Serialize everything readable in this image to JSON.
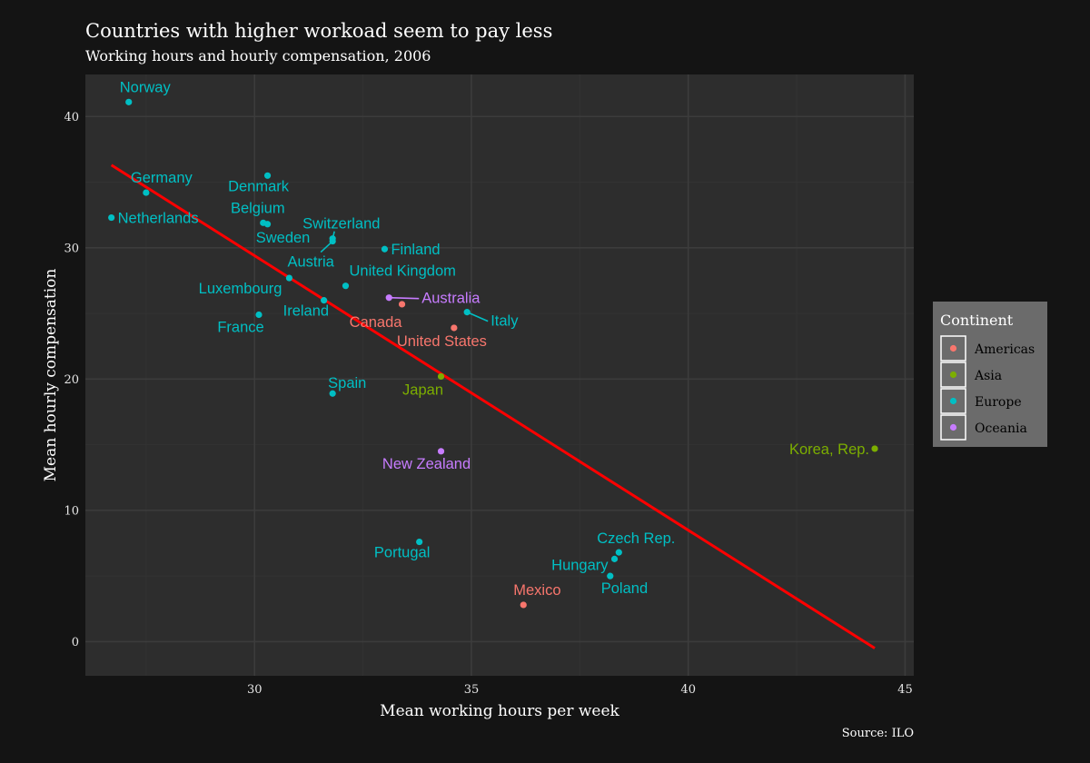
{
  "title": "Countries with higher workoad seem to pay less",
  "subtitle": "Working hours and hourly compensation, 2006",
  "caption": "Source: ILO",
  "colors": {
    "background": "#141414",
    "panel": "#2d2d2d",
    "grid_major": "#3c3c3c",
    "grid_minor": "#333333",
    "text": "#ffffff",
    "tick_text": "#e6e6e6",
    "trend_line": "#ff0000",
    "legend_bg": "#6b6b6b"
  },
  "legend": {
    "title": "Continent",
    "placement": "right",
    "items": [
      {
        "label": "Americas",
        "color": "#F8766D"
      },
      {
        "label": "Asia",
        "color": "#7CAE00"
      },
      {
        "label": "Europe",
        "color": "#00BFC4"
      },
      {
        "label": "Oceania",
        "color": "#C77CFF"
      }
    ]
  },
  "chart_data": {
    "type": "scatter",
    "title": "Countries with higher workoad seem to pay less",
    "subtitle": "Working hours and hourly compensation, 2006",
    "xlabel": "Mean working hours per week",
    "ylabel": "Mean hourly compensation",
    "xlim": [
      26.1,
      45.2
    ],
    "ylim": [
      -2.6,
      43.2
    ],
    "x_ticks": [
      30,
      35,
      40,
      45
    ],
    "y_ticks": [
      0,
      10,
      20,
      30,
      40
    ],
    "grid": true,
    "legend_placement": "right",
    "trend_line": {
      "x1": 26.7,
      "y1": 36.3,
      "x2": 44.3,
      "y2": -0.5
    },
    "series": [
      {
        "name": "Americas",
        "color": "#F8766D",
        "points": [
          {
            "label": "Canada",
            "x": 33.4,
            "y": 25.7
          },
          {
            "label": "United States",
            "x": 34.6,
            "y": 23.9
          },
          {
            "label": "Mexico",
            "x": 36.2,
            "y": 2.8
          }
        ]
      },
      {
        "name": "Asia",
        "color": "#7CAE00",
        "points": [
          {
            "label": "Japan",
            "x": 34.3,
            "y": 20.2
          },
          {
            "label": "Korea, Rep.",
            "x": 44.3,
            "y": 14.7
          }
        ]
      },
      {
        "name": "Europe",
        "color": "#00BFC4",
        "points": [
          {
            "label": "Norway",
            "x": 27.1,
            "y": 41.1
          },
          {
            "label": "Germany",
            "x": 27.5,
            "y": 34.2
          },
          {
            "label": "Netherlands",
            "x": 26.7,
            "y": 32.3
          },
          {
            "label": "Denmark",
            "x": 30.3,
            "y": 35.5
          },
          {
            "label": "Belgium",
            "x": 30.2,
            "y": 31.9
          },
          {
            "label": "Sweden",
            "x": 30.3,
            "y": 31.8
          },
          {
            "label": "Switzerland",
            "x": 31.8,
            "y": 30.7
          },
          {
            "label": "Austria",
            "x": 31.8,
            "y": 30.5
          },
          {
            "label": "Finland",
            "x": 33.0,
            "y": 29.9
          },
          {
            "label": "United Kingdom",
            "x": 32.1,
            "y": 27.1
          },
          {
            "label": "Luxembourg",
            "x": 30.8,
            "y": 27.7
          },
          {
            "label": "Ireland",
            "x": 31.6,
            "y": 26.0
          },
          {
            "label": "France",
            "x": 30.1,
            "y": 24.9
          },
          {
            "label": "Italy",
            "x": 34.9,
            "y": 25.1
          },
          {
            "label": "Spain",
            "x": 31.8,
            "y": 18.9
          },
          {
            "label": "Portugal",
            "x": 33.8,
            "y": 7.6
          },
          {
            "label": "Czech Rep.",
            "x": 38.4,
            "y": 6.8
          },
          {
            "label": "Hungary",
            "x": 38.3,
            "y": 6.3
          },
          {
            "label": "Poland",
            "x": 38.2,
            "y": 5.0
          }
        ]
      },
      {
        "name": "Oceania",
        "color": "#C77CFF",
        "points": [
          {
            "label": "Australia",
            "x": 33.1,
            "y": 26.2
          },
          {
            "label": "New Zealand",
            "x": 34.3,
            "y": 14.5
          }
        ]
      }
    ]
  }
}
